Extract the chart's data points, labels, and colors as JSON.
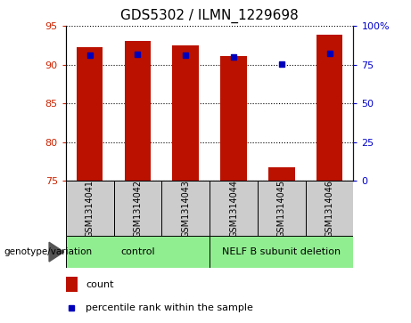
{
  "title": "GDS5302 / ILMN_1229698",
  "samples": [
    "GSM1314041",
    "GSM1314042",
    "GSM1314043",
    "GSM1314044",
    "GSM1314045",
    "GSM1314046"
  ],
  "count_values": [
    92.2,
    93.0,
    92.5,
    91.1,
    76.7,
    93.8
  ],
  "percentile_values": [
    81.3,
    81.8,
    81.3,
    80.1,
    75.3,
    82.5
  ],
  "ylim_left": [
    75,
    95
  ],
  "ylim_right": [
    0,
    100
  ],
  "yticks_left": [
    75,
    80,
    85,
    90,
    95
  ],
  "yticks_right": [
    0,
    25,
    50,
    75,
    100
  ],
  "bar_color": "#bb1100",
  "percentile_color": "#0000bb",
  "group_labels": [
    "control",
    "NELF B subunit deletion"
  ],
  "group_ranges": [
    [
      0,
      3
    ],
    [
      3,
      6
    ]
  ],
  "sample_box_color": "#cccccc",
  "legend_count_color": "#bb1100",
  "legend_percentile_color": "#0000bb",
  "bar_width": 0.55,
  "left_tick_color": "#cc2200",
  "right_tick_color": "#0000cc",
  "title_fontsize": 11,
  "tick_fontsize": 8,
  "label_fontsize": 8,
  "green_color": "#90ee90"
}
